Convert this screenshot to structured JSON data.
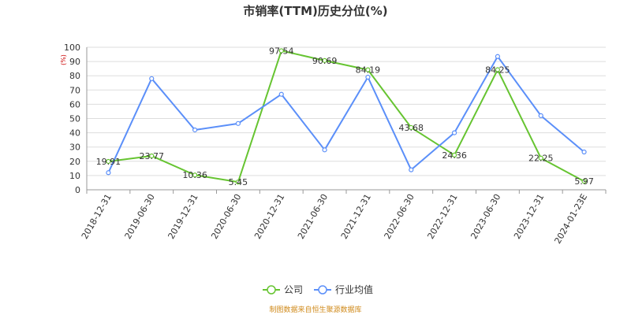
{
  "colors": {
    "company": "#66c431",
    "industry": "#5b8ff9",
    "grid": "#dddddd",
    "axis": "#999999",
    "unit": "#cc0000",
    "source": "#d08a1a"
  },
  "chart_data": {
    "type": "line",
    "title": "市销率(TTM)历史分位(%)",
    "y_unit": "(%)",
    "ylim": [
      0,
      100
    ],
    "y_ticks": [
      0,
      10,
      20,
      30,
      40,
      50,
      60,
      70,
      80,
      90,
      100
    ],
    "grid": true,
    "legend_position": "bottom",
    "categories": [
      "2018-12-31",
      "2019-06-30",
      "2019-12-31",
      "2020-06-30",
      "2020-12-31",
      "2021-06-30",
      "2021-12-31",
      "2022-06-30",
      "2022-12-31",
      "2023-06-30",
      "2023-12-31",
      "2024-01-23E"
    ],
    "series": [
      {
        "name": "公司",
        "values": [
          19.91,
          23.77,
          10.36,
          5.45,
          97.54,
          90.69,
          84.19,
          43.68,
          24.36,
          84.25,
          22.25,
          5.97
        ],
        "labels": [
          "19.91",
          "23.77",
          "10.36",
          "5.45",
          "97.54",
          "90.69",
          "84.19",
          "43.68",
          "24.36",
          "84.25",
          "22.25",
          "5.97"
        ]
      },
      {
        "name": "行业均值",
        "values": [
          12,
          78,
          42,
          46.5,
          67,
          28,
          79,
          14,
          40,
          93.5,
          52,
          26.5
        ]
      }
    ]
  },
  "source_text": "制图数据来自恒生聚源数据库"
}
